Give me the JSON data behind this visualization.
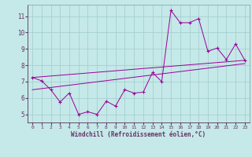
{
  "xlabel": "Windchill (Refroidissement éolien,°C)",
  "bg_color": "#c5e8e8",
  "line_color": "#990099",
  "grid_color": "#a0cccc",
  "axis_color": "#663366",
  "xlim": [
    -0.5,
    23.5
  ],
  "ylim": [
    4.5,
    11.7
  ],
  "xticks": [
    0,
    1,
    2,
    3,
    4,
    5,
    6,
    7,
    8,
    9,
    10,
    11,
    12,
    13,
    14,
    15,
    16,
    17,
    18,
    19,
    20,
    21,
    22,
    23
  ],
  "yticks": [
    5,
    6,
    7,
    8,
    9,
    10,
    11
  ],
  "line1_x": [
    0,
    1,
    2,
    3,
    4,
    5,
    6,
    7,
    8,
    9,
    10,
    11,
    12,
    13,
    14,
    15,
    16,
    17,
    18,
    19,
    20,
    21,
    22,
    23
  ],
  "line1_y": [
    7.25,
    7.05,
    6.5,
    5.75,
    6.3,
    5.0,
    5.15,
    5.0,
    5.8,
    5.5,
    6.5,
    6.3,
    6.35,
    7.55,
    7.0,
    11.35,
    10.6,
    10.6,
    10.85,
    8.85,
    9.05,
    8.35,
    9.3,
    8.3
  ],
  "line2_x": [
    0,
    23
  ],
  "line2_y": [
    7.25,
    8.3
  ],
  "line3_x": [
    0,
    23
  ],
  "line3_y": [
    6.5,
    8.1
  ],
  "figsize": [
    3.2,
    2.0
  ],
  "dpi": 100
}
